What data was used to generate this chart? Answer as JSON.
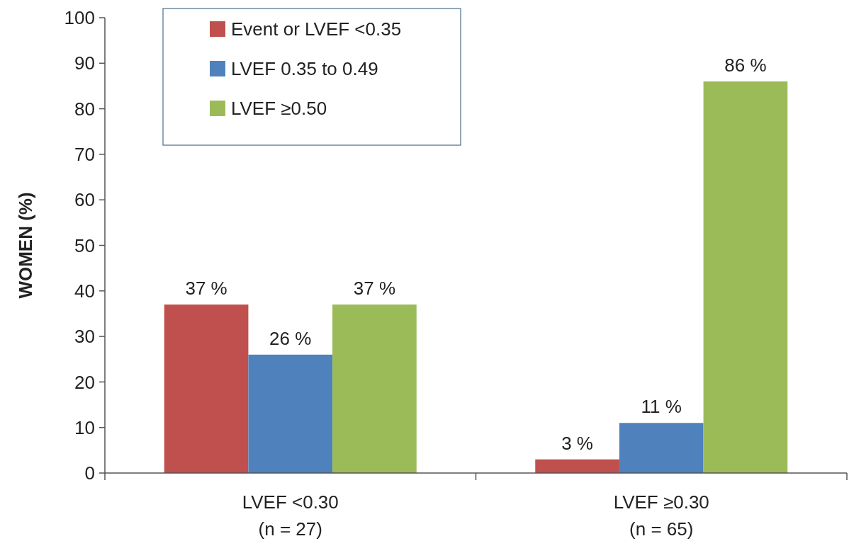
{
  "chart_data": {
    "type": "bar",
    "ylabel": "WOMEN (%)",
    "categories": [
      "LVEF <0.30\n(n = 27)",
      "LVEF ≥0.30\n(n = 65)"
    ],
    "series": [
      {
        "name": "Event or LVEF <0.35",
        "color": "#c0504d",
        "values": [
          37,
          3
        ],
        "value_labels": [
          "37 %",
          "3 %"
        ]
      },
      {
        "name": "LVEF 0.35 to 0.49",
        "color": "#4f81bd",
        "values": [
          26,
          11
        ],
        "value_labels": [
          "26 %",
          "11 %"
        ]
      },
      {
        "name": "LVEF ≥0.50",
        "color": "#9bbb59",
        "values": [
          37,
          86
        ],
        "value_labels": [
          "37 %",
          "86 %"
        ]
      }
    ],
    "ylim": [
      0,
      100
    ],
    "yticks": [
      0,
      10,
      20,
      30,
      40,
      50,
      60,
      70,
      80,
      90,
      100
    ],
    "grid": false,
    "legend": "top left"
  }
}
